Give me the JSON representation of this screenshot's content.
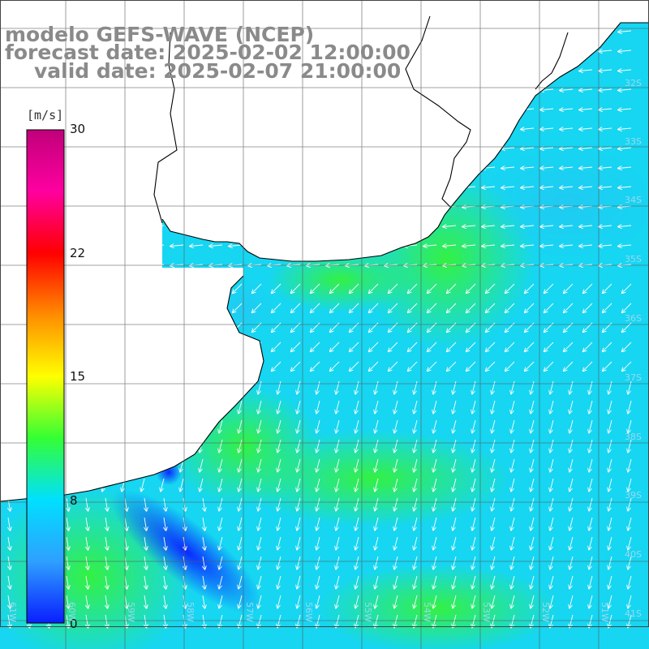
{
  "title": {
    "line1": "modelo GEFS-WAVE (NCEP)",
    "line2": "forecast date: 2025-02-02 12:00:00",
    "line3": "valid date: 2025-02-07 21:00:00"
  },
  "colorbar": {
    "unit": "[m/s]",
    "ticks": [
      "30",
      "22",
      "15",
      "8",
      "0"
    ],
    "tick_values": [
      30,
      22,
      15,
      8,
      0
    ],
    "colors": [
      "#0a1eff",
      "#2ea0ff",
      "#00e0ff",
      "#34ff34",
      "#ffff00",
      "#ff8c00",
      "#ff0000",
      "#ff00a0",
      "#c0007a"
    ]
  },
  "lat_labels": [
    "32S",
    "33S",
    "34S",
    "35S",
    "36S",
    "37S",
    "38S",
    "39S",
    "40S",
    "41S"
  ],
  "lon_labels": [
    "61W",
    "60W",
    "59W",
    "58W",
    "57W",
    "56W",
    "55W",
    "54W",
    "53W",
    "52W",
    "51W"
  ],
  "field": {
    "variable": "wind speed",
    "unit": "m/s",
    "prevailing_direction": "south-southwest",
    "range_min": 0,
    "range_max": 30
  },
  "colors": {
    "ocean_base": "#16d6f2",
    "land": "#ffffff",
    "coastline": "#000000",
    "grid": "#5a5a5a",
    "arrows": "#ffffff",
    "title_text": "#8a8a8a"
  }
}
